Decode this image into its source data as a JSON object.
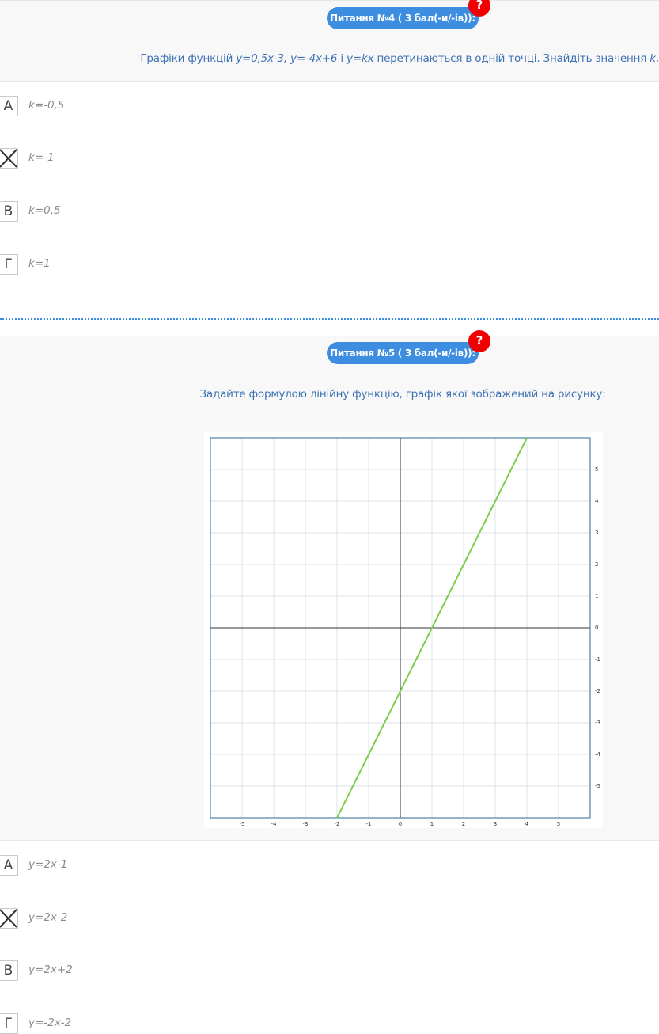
{
  "questions": [
    {
      "badge": "Питання №4 ( 3 бал(-и/-ів)):",
      "help": "?",
      "text": [
        "Графіки функцій ",
        "y=0,5x-3, y=-4x+6",
        " і ",
        "y=kx",
        " перетинаються в одній точці. Знайдіть значення ",
        "k",
        "."
      ],
      "options": [
        {
          "letter": "А",
          "text": "k=-0,5"
        },
        {
          "selected": true,
          "text": "k=-1"
        },
        {
          "letter": "В",
          "text": "k=0,5"
        },
        {
          "letter": "Г",
          "text": "k=1"
        }
      ]
    },
    {
      "badge": "Питання №5 ( 3 бал(-и/-ів)):",
      "help": "?",
      "text": [
        "Задайте формулою лінійну функцію, графік якої зображений на рисунку:"
      ],
      "graph": {
        "xlim": [
          -6,
          6
        ],
        "ylim": [
          -6,
          6
        ],
        "xticks": [
          -5,
          -4,
          -3,
          -2,
          -1,
          0,
          1,
          2,
          3,
          4,
          5
        ],
        "yticks": [
          -5,
          -4,
          -3,
          -2,
          -1,
          0,
          1,
          2,
          3,
          4,
          5
        ],
        "grid": true,
        "color": "#7dcc4e",
        "x": [
          -2,
          4
        ],
        "y": [
          -6,
          6
        ]
      },
      "options": [
        {
          "letter": "А",
          "text": "y=2x-1"
        },
        {
          "selected": true,
          "text": "y=2x-2"
        },
        {
          "letter": "В",
          "text": "y=2x+2"
        },
        {
          "letter": "Г",
          "text": "y=-2x-2"
        }
      ]
    }
  ]
}
